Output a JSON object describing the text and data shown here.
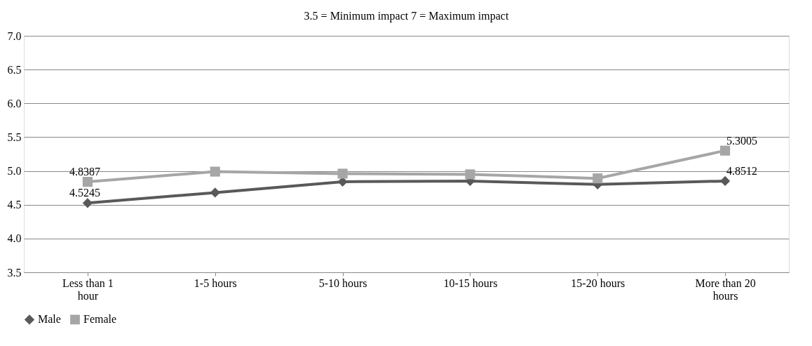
{
  "chart_data": {
    "type": "line",
    "title": "3.5 = Minimum impact      7 = Maximum impact",
    "categories": [
      "Less than 1 hour",
      "1-5 hours",
      "5-10 hours",
      "10-15 hours",
      "15-20 hours",
      "More than 20 hours"
    ],
    "series": [
      {
        "name": "Male",
        "color": "#595959",
        "marker": "diamond",
        "values": [
          4.5245,
          4.68,
          4.84,
          4.85,
          4.8,
          4.8512
        ],
        "value_labels": [
          "4.5245",
          null,
          null,
          null,
          null,
          "4.8512"
        ]
      },
      {
        "name": "Female",
        "color": "#a6a6a6",
        "marker": "square",
        "values": [
          4.8387,
          4.99,
          4.96,
          4.95,
          4.89,
          5.3005
        ],
        "value_labels": [
          "4.8387",
          null,
          null,
          null,
          null,
          "5.3005"
        ]
      }
    ],
    "ylim": [
      3.5,
      7.0
    ],
    "yticks": [
      {
        "value": 3.5,
        "label": "3.5"
      },
      {
        "value": 4,
        "label": "4.0"
      },
      {
        "value": 4.5,
        "label": "4.5"
      },
      {
        "value": 5,
        "label": "5.0"
      },
      {
        "value": 5.5,
        "label": "5.5"
      },
      {
        "value": 6,
        "label": "6.0"
      },
      {
        "value": 6.5,
        "label": "6.5"
      },
      {
        "value": 7,
        "label": "7.0"
      }
    ],
    "grid": "y",
    "legend": "bottom",
    "line_style": "solid"
  }
}
